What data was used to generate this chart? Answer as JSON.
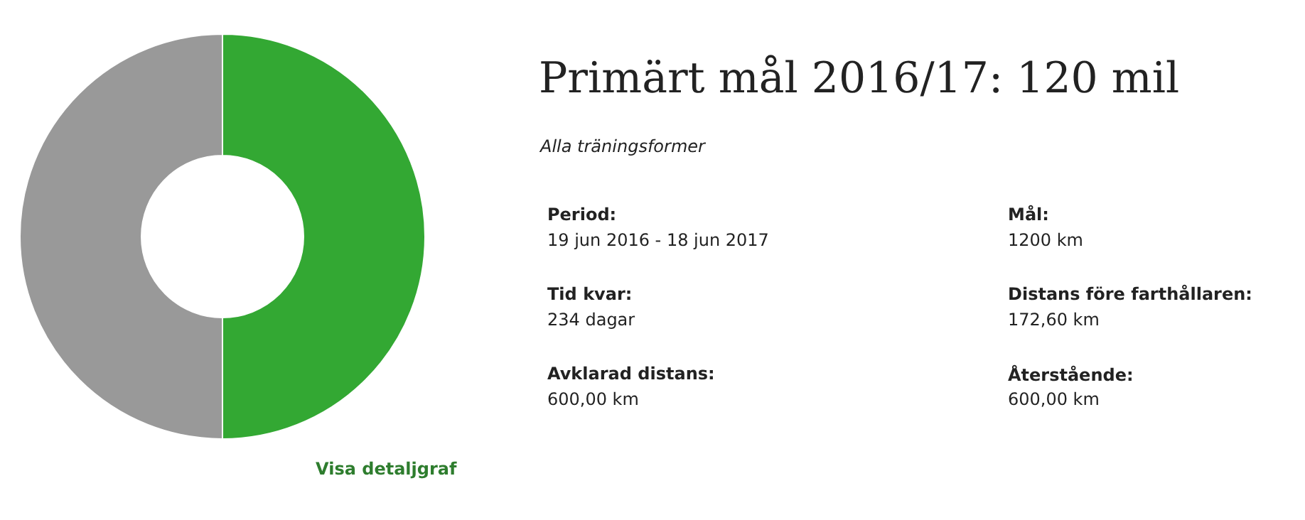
{
  "chart_data": {
    "type": "donut",
    "title": "Primärt mål 2016/17: 120 mil",
    "subtitle": "Alla träningsformer",
    "categories": [
      null,
      null
    ],
    "values": [
      50,
      50
    ],
    "colors": [
      "#33a833",
      "#999999"
    ],
    "legend": false,
    "annotations": [
      "Period:",
      "19 jun 2016 - 18 jun 2017",
      "Mål:",
      "1200 km",
      "Tid kvar:",
      "234 dagar",
      "Distans före farthållaren:",
      "172,60 km",
      "Avklarad distans:",
      "600,00 km",
      "Återstående:",
      "600,00 km",
      "Visa detaljgraf"
    ]
  }
}
